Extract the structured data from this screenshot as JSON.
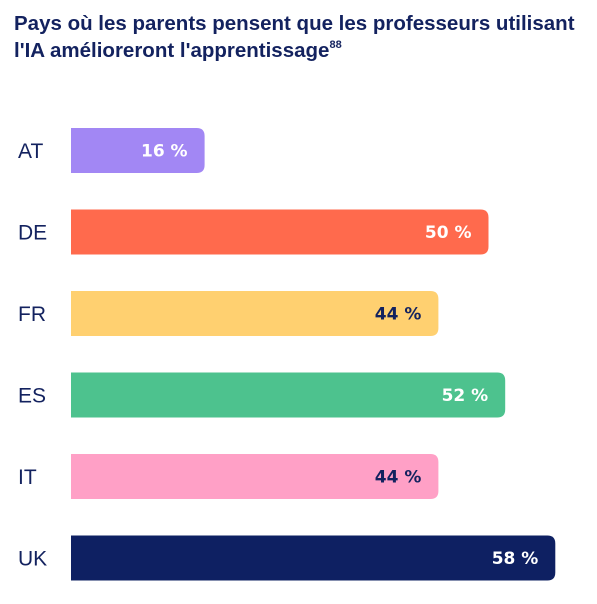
{
  "title_main": "Pays où les parents pensent que les professeurs utilisant l'IA amélioreront l'apprentissage",
  "title_note": "88",
  "chart_data": {
    "type": "bar",
    "orientation": "horizontal",
    "categories": [
      "AT",
      "DE",
      "FR",
      "ES",
      "IT",
      "UK"
    ],
    "values": [
      16,
      50,
      44,
      52,
      44,
      58
    ],
    "value_labels": [
      "16 %",
      "50 %",
      "44 %",
      "52 %",
      "44 %",
      "58 %"
    ],
    "colors": [
      "#a287f4",
      "#ff6a4d",
      "#ffd070",
      "#4dc28e",
      "#ffa0c6",
      "#0e2062"
    ],
    "label_colors": [
      "#ffffff",
      "#ffffff",
      "#13225f",
      "#ffffff",
      "#13225f",
      "#ffffff"
    ],
    "xlim": [
      0,
      60
    ],
    "grid": false,
    "legend": "none"
  }
}
